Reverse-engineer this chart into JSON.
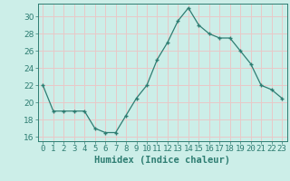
{
  "x": [
    0,
    1,
    2,
    3,
    4,
    5,
    6,
    7,
    8,
    9,
    10,
    11,
    12,
    13,
    14,
    15,
    16,
    17,
    18,
    19,
    20,
    21,
    22,
    23
  ],
  "y": [
    22,
    19,
    19,
    19,
    19,
    17,
    16.5,
    16.5,
    18.5,
    20.5,
    22,
    25,
    27,
    29.5,
    31,
    29,
    28,
    27.5,
    27.5,
    26,
    24.5,
    22,
    21.5,
    20.5
  ],
  "line_color": "#2e7d72",
  "marker": "+",
  "marker_size": 3.5,
  "bg_color": "#cceee8",
  "grid_color": "#e8c8c8",
  "title": "",
  "xlabel": "Humidex (Indice chaleur)",
  "ylabel": "",
  "ylim": [
    15.5,
    31.5
  ],
  "yticks": [
    16,
    18,
    20,
    22,
    24,
    26,
    28,
    30
  ],
  "xtick_labels": [
    "0",
    "1",
    "2",
    "3",
    "4",
    "5",
    "6",
    "7",
    "8",
    "9",
    "10",
    "11",
    "12",
    "13",
    "14",
    "15",
    "16",
    "17",
    "18",
    "19",
    "20",
    "21",
    "22",
    "23"
  ],
  "tick_color": "#2e7d72",
  "label_fontsize": 6.5,
  "xlabel_fontsize": 7.5
}
